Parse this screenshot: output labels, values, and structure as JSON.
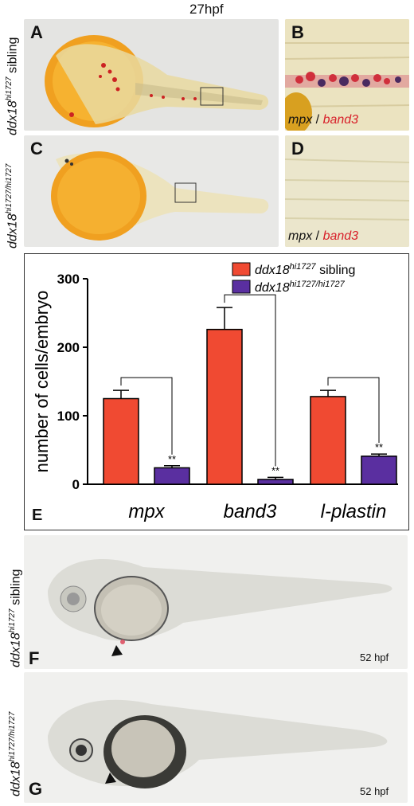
{
  "figure_title": "27hpf",
  "panels": {
    "A": {
      "letter": "A",
      "genotype_base": "ddx18",
      "genotype_sup": "hi1727",
      "genotype_suffix": " sibling"
    },
    "B": {
      "letter": "B",
      "stain_1": "mpx",
      "stain_sep": " / ",
      "stain_2": "band3"
    },
    "C": {
      "letter": "C",
      "genotype_base": "ddx18",
      "genotype_sup": "hi1727/hi1727"
    },
    "D": {
      "letter": "D",
      "stain_1": "mpx",
      "stain_sep": " / ",
      "stain_2": "band3"
    },
    "E": {
      "letter": "E"
    },
    "F": {
      "letter": "F",
      "genotype_base": "ddx18",
      "genotype_sup": "hi1727",
      "genotype_suffix": " sibling",
      "stage": "52 hpf"
    },
    "G": {
      "letter": "G",
      "genotype_base": "ddx18",
      "genotype_sup": "hi1727/hi1727",
      "stage": "52 hpf"
    }
  },
  "colors": {
    "sibling": "#f04a32",
    "mutant": "#5a2fa0"
  },
  "chart_data": {
    "type": "bar",
    "categories": [
      "mpx",
      "band3",
      "l-plastin"
    ],
    "series": [
      {
        "name": "ddx18hi1727 sibling",
        "name_base": "ddx18",
        "name_sup": "hi1727",
        "name_suffix": " sibling",
        "values": [
          125,
          226,
          128
        ],
        "errors": [
          12,
          32,
          9
        ]
      },
      {
        "name": "ddx18hi1727/hi1727",
        "name_base": "ddx18",
        "name_sup": "hi1727/hi1727",
        "name_suffix": "",
        "values": [
          24,
          7,
          41
        ],
        "errors": [
          3,
          3,
          3
        ]
      }
    ],
    "ylabel": "number of cells/embryo",
    "ylim": [
      0,
      300
    ],
    "yticks": [
      0,
      100,
      200,
      300
    ],
    "significance": [
      "**",
      "**",
      "**"
    ],
    "legend_position": "top-right"
  }
}
